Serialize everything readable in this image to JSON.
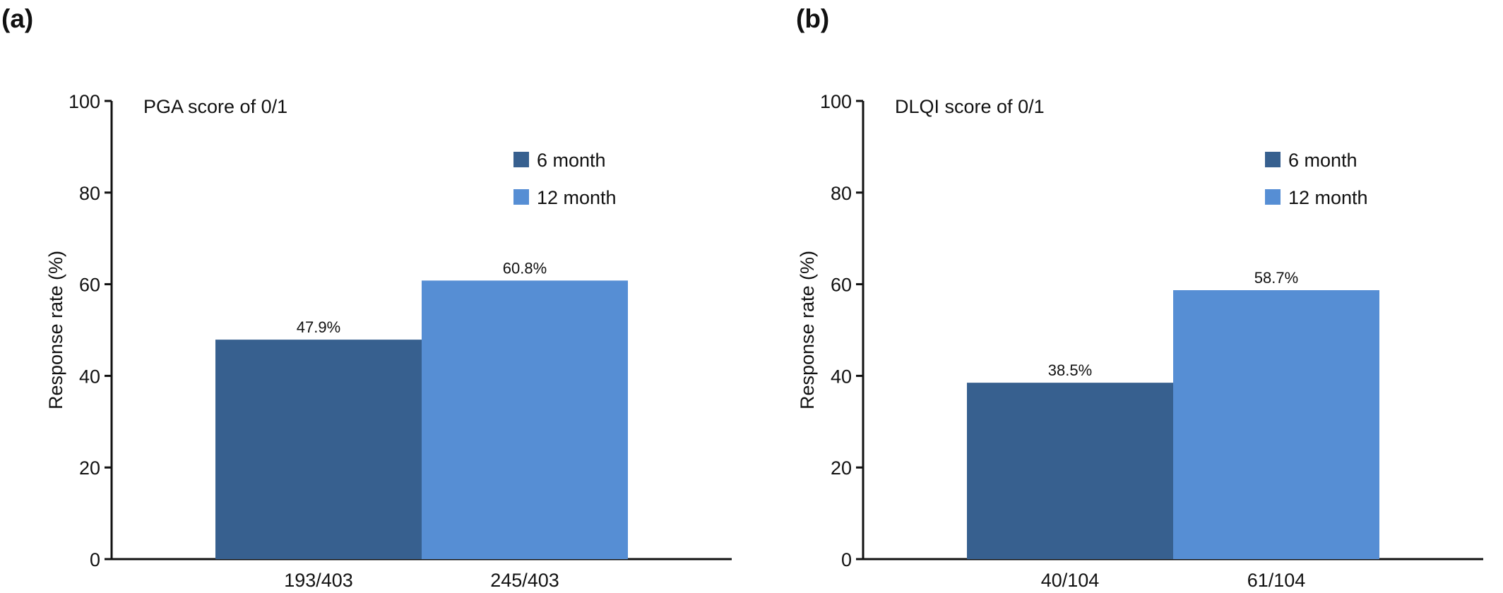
{
  "figure": {
    "panels": [
      {
        "label": "(a)"
      },
      {
        "label": "(b)"
      }
    ]
  },
  "chart_data": [
    {
      "type": "bar",
      "title": "PGA score of 0/1",
      "xlabel": "",
      "ylabel": "Response rate (%)",
      "ylim": [
        0,
        100
      ],
      "yticks": [
        0,
        20,
        40,
        60,
        80,
        100
      ],
      "categories": [
        "193/403",
        "245/403"
      ],
      "values": [
        47.9,
        60.8
      ],
      "data_labels": [
        "47.9%",
        "60.8%"
      ],
      "legend": [
        {
          "name": "6 month",
          "color": "#37608f"
        },
        {
          "name": "12 month",
          "color": "#568ed4"
        }
      ],
      "legend_position": "top-right",
      "grid": false,
      "colors": [
        "#37608f",
        "#568ed4"
      ]
    },
    {
      "type": "bar",
      "title": "DLQI score of 0/1",
      "xlabel": "",
      "ylabel": "Response rate (%)",
      "ylim": [
        0,
        100
      ],
      "yticks": [
        0,
        20,
        40,
        60,
        80,
        100
      ],
      "categories": [
        "40/104",
        "61/104"
      ],
      "values": [
        38.5,
        58.7
      ],
      "data_labels": [
        "38.5%",
        "58.7%"
      ],
      "legend": [
        {
          "name": "6 month",
          "color": "#37608f"
        },
        {
          "name": "12 month",
          "color": "#568ed4"
        }
      ],
      "legend_position": "top-right",
      "grid": false,
      "colors": [
        "#37608f",
        "#568ed4"
      ]
    }
  ]
}
